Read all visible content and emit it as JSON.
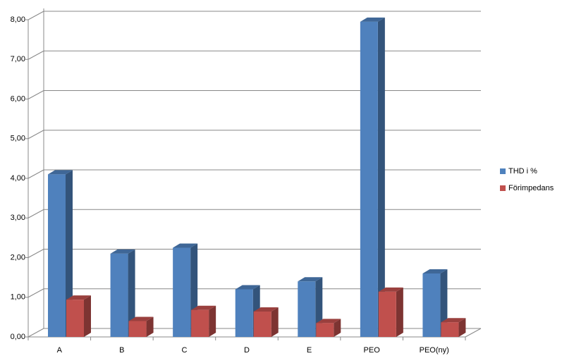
{
  "chart_data": {
    "type": "bar3d",
    "categories": [
      "A",
      "B",
      "C",
      "D",
      "E",
      "PEO",
      "PEO(ny)"
    ],
    "series": [
      {
        "name": "THD i %",
        "color": "#4f81bd",
        "values": [
          4.1,
          2.1,
          2.25,
          1.2,
          1.4,
          7.95,
          1.6
        ]
      },
      {
        "name": "Förimpedans",
        "color": "#c0504d",
        "values": [
          0.94,
          0.4,
          0.68,
          0.64,
          0.35,
          1.14,
          0.37
        ]
      }
    ],
    "ylim": [
      0,
      8
    ],
    "yticks": [
      {
        "value": 0,
        "label": "0,00"
      },
      {
        "value": 1,
        "label": "1,00"
      },
      {
        "value": 2,
        "label": "2,00"
      },
      {
        "value": 3,
        "label": "3,00"
      },
      {
        "value": 4,
        "label": "4,00"
      },
      {
        "value": 5,
        "label": "5,00"
      },
      {
        "value": 6,
        "label": "6,00"
      },
      {
        "value": 7,
        "label": "7,00"
      },
      {
        "value": 8,
        "label": "8,00"
      }
    ],
    "grid": true,
    "legend": "right"
  }
}
